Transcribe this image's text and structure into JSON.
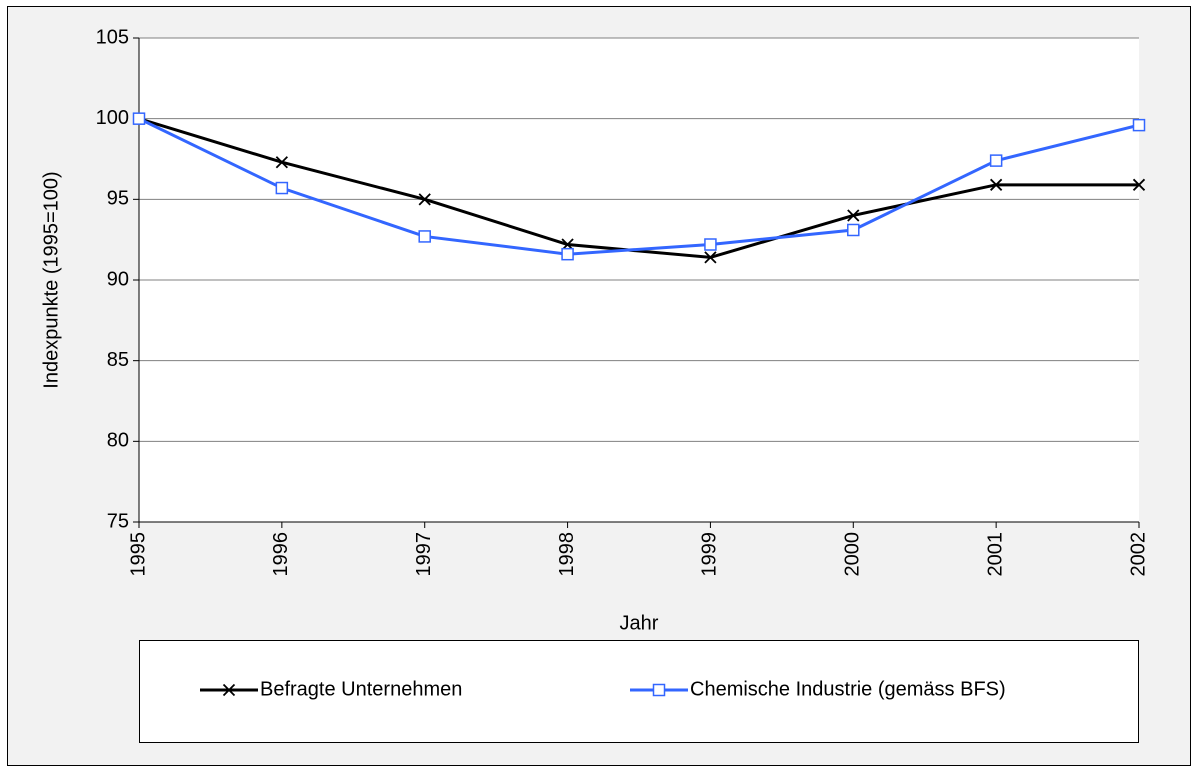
{
  "chart_data": {
    "type": "line",
    "x_label": "Jahr",
    "y_label": "Indexpunkte (1995=100)",
    "x": [
      1995,
      1996,
      1997,
      1998,
      1999,
      2000,
      2001,
      2002
    ],
    "xlim": [
      1995,
      2002
    ],
    "xticks": [
      1995,
      1996,
      1997,
      1998,
      1999,
      2000,
      2001,
      2002
    ],
    "ylim": [
      75,
      105
    ],
    "yticks": [
      75,
      80,
      85,
      90,
      95,
      100,
      105
    ],
    "grid": true,
    "legend": "bottom",
    "series": [
      {
        "name": "Befragte Unternehmen",
        "color": "#000000",
        "marker": "x",
        "values": [
          100,
          97.3,
          95.0,
          92.2,
          91.4,
          94.0,
          95.9,
          95.9
        ]
      },
      {
        "name": "Chemische Industrie (gemäss BFS)",
        "color": "#3366ff",
        "marker": "square",
        "values": [
          100,
          95.7,
          92.7,
          91.6,
          92.2,
          93.1,
          97.4,
          99.6
        ]
      }
    ]
  }
}
